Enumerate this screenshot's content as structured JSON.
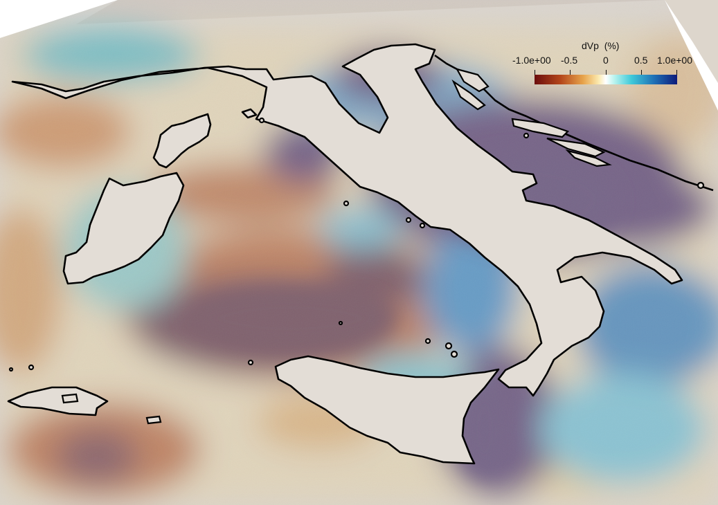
{
  "legend": {
    "title": "dVp  (%)",
    "ticks": [
      "-1.0e+00",
      "-0.5",
      "0",
      "0.5",
      "1.0e+00"
    ],
    "tick_values": [
      -1.0,
      -0.5,
      0,
      0.5,
      1.0
    ],
    "range": [
      -1.0,
      1.0
    ],
    "colormap": [
      "#6b0d0d",
      "#b3451a",
      "#e7a34b",
      "#fbeab0",
      "#ffffff",
      "#b9f3ee",
      "#3fc9d9",
      "#1f6fb5",
      "#0d1a7a"
    ]
  },
  "map": {
    "shaded_relief_color": "#cfcac6",
    "coastline_color": "#000000",
    "anomaly_colors": {
      "slow_deep": "#7a5a66",
      "slow": "#c9845e",
      "slow_light": "#e9c28a",
      "neutral": "#efe6cf",
      "fast_light": "#8fd6d8",
      "fast": "#6a8fc0",
      "fast_deep": "#6e5d86"
    }
  }
}
